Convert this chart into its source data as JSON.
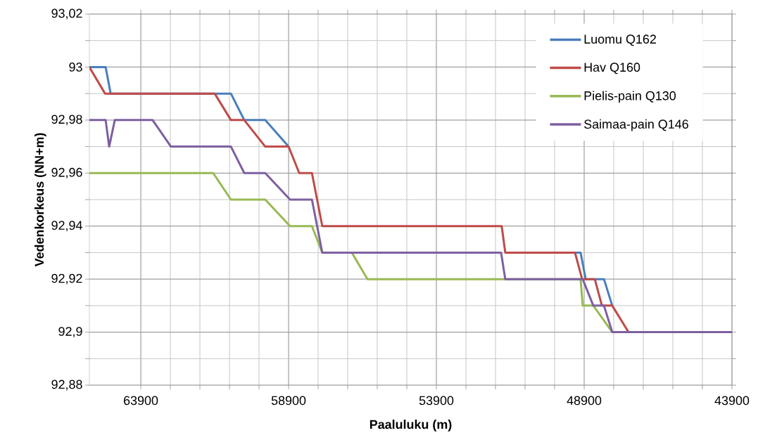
{
  "chart_data": {
    "type": "line",
    "xlabel": "Paaluluku (m)",
    "ylabel": "Vedenkorkeus (NN+m)",
    "xlim": [
      65640,
      43900
    ],
    "xticks": [
      63900,
      58900,
      53900,
      48900,
      43900
    ],
    "ylim": [
      92.88,
      93.02
    ],
    "yticks": [
      {
        "value": 92.88,
        "label": "92,88"
      },
      {
        "value": 92.9,
        "label": "92,9"
      },
      {
        "value": 92.92,
        "label": "92,92"
      },
      {
        "value": 92.94,
        "label": "92,94"
      },
      {
        "value": 92.96,
        "label": "92,96"
      },
      {
        "value": 92.98,
        "label": "92,98"
      },
      {
        "value": 93.0,
        "label": "93"
      },
      {
        "value": 93.02,
        "label": "93,02"
      }
    ],
    "grid": true,
    "legend": "top right",
    "line_style": "solid",
    "series": [
      {
        "name": "Luomu Q162",
        "color": "#4a7ebb",
        "x": [
          65640,
          65090,
          64920,
          60850,
          60400,
          59690,
          58900,
          58540,
          49210,
          49020,
          48850,
          48230,
          47950
        ],
        "values": [
          93.0,
          93.0,
          92.99,
          92.99,
          92.98,
          92.98,
          92.97,
          null,
          92.93,
          92.93,
          92.92,
          92.92,
          92.91
        ]
      },
      {
        "name": "Hav Q160",
        "color": "#be4b48",
        "x": [
          65640,
          65110,
          61400,
          60850,
          60400,
          59690,
          58900,
          58540,
          58110,
          57760,
          51690,
          51570,
          49210,
          48970,
          48540,
          48300,
          47950,
          47400,
          43900
        ],
        "values": [
          93.0,
          92.99,
          92.99,
          92.98,
          92.98,
          92.97,
          92.97,
          92.96,
          92.96,
          92.94,
          92.94,
          92.93,
          92.93,
          92.92,
          92.92,
          92.91,
          92.91,
          92.9,
          92.9
        ]
      },
      {
        "name": "Pielis-pain Q130",
        "color": "#98b954",
        "x": [
          65640,
          61450,
          60850,
          59690,
          58850,
          58110,
          57760,
          56760,
          56230,
          49020,
          48950,
          48590,
          47950,
          43900
        ],
        "values": [
          92.96,
          92.96,
          92.95,
          92.95,
          92.94,
          92.94,
          92.93,
          92.93,
          92.92,
          92.92,
          92.91,
          92.91,
          92.9,
          92.9
        ]
      },
      {
        "name": "Saimaa-pain Q146",
        "color": "#7d60a0",
        "x": [
          65640,
          65090,
          64970,
          64780,
          63500,
          62880,
          60850,
          60400,
          59690,
          58850,
          58110,
          57760,
          51710,
          51570,
          48950,
          48590,
          48230,
          47950,
          43900
        ],
        "values": [
          92.98,
          92.98,
          92.97,
          92.98,
          92.98,
          92.97,
          92.97,
          92.96,
          92.96,
          92.95,
          92.95,
          92.93,
          92.93,
          92.92,
          92.92,
          92.91,
          92.91,
          92.9,
          92.9
        ]
      }
    ]
  }
}
